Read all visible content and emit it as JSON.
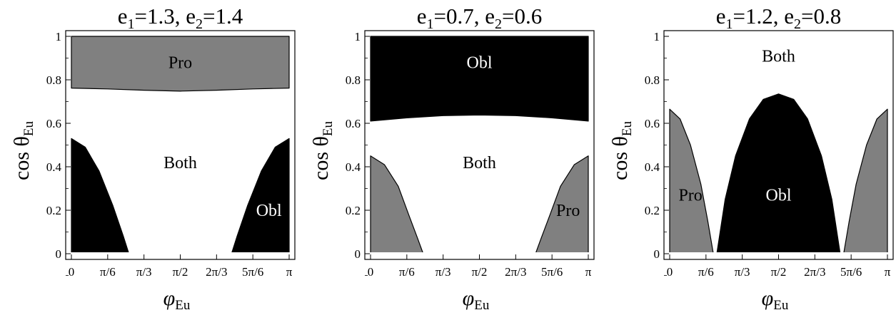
{
  "colors": {
    "pro": "#808080",
    "obl": "#000000",
    "both": "#ffffff",
    "frame": "#000000"
  },
  "axes": {
    "y_tick_labels": [
      "0",
      "0.2",
      "0.4",
      "0.6",
      "0.8",
      "1"
    ],
    "x_tick_labels": [
      "0",
      "π/6",
      "π/3",
      "π/2",
      "2π/3",
      "5π/6",
      "π"
    ],
    "xlabel": {
      "main": "φ",
      "sub": "Eu"
    },
    "ylabel": {
      "main": "cos θ",
      "sub": "Eu"
    }
  },
  "chart_data": [
    {
      "type": "area",
      "title": {
        "e1_symbol": "e",
        "e1_index": "1",
        "e1_value": "=1.3",
        "separator": ", ",
        "e2_symbol": "e",
        "e2_index": "2",
        "e2_value": "=1.4"
      },
      "xlim": [
        0,
        3.1416
      ],
      "ylim": [
        0,
        1
      ],
      "grid": false,
      "background_region": "Both",
      "regions": [
        {
          "name": "Pro",
          "fill": "gray",
          "kind": "top_band",
          "boundary": {
            "x": [
              0,
              0.5236,
              1.0472,
              1.5708,
              2.0944,
              2.618,
              3.1416
            ],
            "y": [
              0.762,
              0.758,
              0.752,
              0.748,
              0.752,
              0.758,
              0.762
            ]
          }
        },
        {
          "name": "Obl",
          "fill": "black",
          "kind": "bottom_left",
          "boundary": {
            "x": [
              0,
              0.2,
              0.4,
              0.6,
              0.75,
              0.83
            ],
            "y": [
              0.53,
              0.49,
              0.38,
              0.22,
              0.08,
              0
            ]
          }
        },
        {
          "name": "Obl",
          "fill": "black",
          "kind": "bottom_right",
          "boundary": {
            "x": [
              2.31,
              2.39,
              2.54,
              2.74,
              2.94,
              3.1416
            ],
            "y": [
              0,
              0.08,
              0.22,
              0.38,
              0.49,
              0.53
            ]
          }
        }
      ],
      "labels": [
        {
          "text": "Pro",
          "x": 1.5708,
          "y": 0.88
        },
        {
          "text": "Both",
          "x": 1.5708,
          "y": 0.42
        },
        {
          "text": "Obl",
          "x": 2.85,
          "y": 0.2
        }
      ]
    },
    {
      "type": "area",
      "title": {
        "e1_symbol": "e",
        "e1_index": "1",
        "e1_value": "=0.7",
        "separator": ", ",
        "e2_symbol": "e",
        "e2_index": "2",
        "e2_value": "=0.6"
      },
      "xlim": [
        0,
        3.1416
      ],
      "ylim": [
        0,
        1
      ],
      "grid": false,
      "background_region": "Both",
      "regions": [
        {
          "name": "Obl",
          "fill": "black",
          "kind": "top_band",
          "boundary": {
            "x": [
              0,
              0.5236,
              1.0472,
              1.5708,
              2.0944,
              2.618,
              3.1416
            ],
            "y": [
              0.61,
              0.625,
              0.635,
              0.638,
              0.635,
              0.625,
              0.61
            ]
          }
        },
        {
          "name": "Pro",
          "fill": "gray",
          "kind": "bottom_left",
          "boundary": {
            "x": [
              0,
              0.2,
              0.4,
              0.55,
              0.68,
              0.76
            ],
            "y": [
              0.45,
              0.41,
              0.31,
              0.18,
              0.07,
              0
            ]
          }
        },
        {
          "name": "Pro",
          "fill": "gray",
          "kind": "bottom_right",
          "boundary": {
            "x": [
              2.38,
              2.46,
              2.59,
              2.74,
              2.94,
              3.1416
            ],
            "y": [
              0,
              0.07,
              0.18,
              0.31,
              0.41,
              0.45
            ]
          }
        }
      ],
      "labels": [
        {
          "text": "Obl",
          "x": 1.5708,
          "y": 0.88
        },
        {
          "text": "Both",
          "x": 1.5708,
          "y": 0.42
        },
        {
          "text": "Pro",
          "x": 2.85,
          "y": 0.2
        }
      ]
    },
    {
      "type": "area",
      "title": {
        "e1_symbol": "e",
        "e1_index": "1",
        "e1_value": "=1.2",
        "separator": ", ",
        "e2_symbol": "e",
        "e2_index": "2",
        "e2_value": "=0.8"
      },
      "xlim": [
        0,
        3.1416
      ],
      "ylim": [
        0,
        1
      ],
      "grid": false,
      "background_region": "Both",
      "regions": [
        {
          "name": "Pro",
          "fill": "gray",
          "kind": "bottom_left",
          "boundary": {
            "x": [
              0,
              0.15,
              0.3,
              0.45,
              0.55,
              0.63
            ],
            "y": [
              0.665,
              0.62,
              0.5,
              0.32,
              0.15,
              0
            ]
          }
        },
        {
          "name": "Obl",
          "fill": "black",
          "kind": "bottom_middle",
          "boundary": {
            "x": [
              0.68,
              0.8,
              0.95,
              1.15,
              1.35,
              1.5708,
              1.79,
              1.99,
              2.19,
              2.34,
              2.46
            ],
            "y": [
              0,
              0.25,
              0.45,
              0.62,
              0.71,
              0.735,
              0.71,
              0.62,
              0.45,
              0.25,
              0
            ]
          }
        },
        {
          "name": "Pro",
          "fill": "gray",
          "kind": "bottom_right",
          "boundary": {
            "x": [
              2.51,
              2.59,
              2.69,
              2.84,
              2.99,
              3.1416
            ],
            "y": [
              0,
              0.15,
              0.32,
              0.5,
              0.62,
              0.665
            ]
          }
        }
      ],
      "labels": [
        {
          "text": "Both",
          "x": 1.5708,
          "y": 0.91
        },
        {
          "text": "Obl",
          "x": 1.5708,
          "y": 0.27
        },
        {
          "text": "Pro",
          "x": 0.3,
          "y": 0.27
        }
      ]
    }
  ]
}
